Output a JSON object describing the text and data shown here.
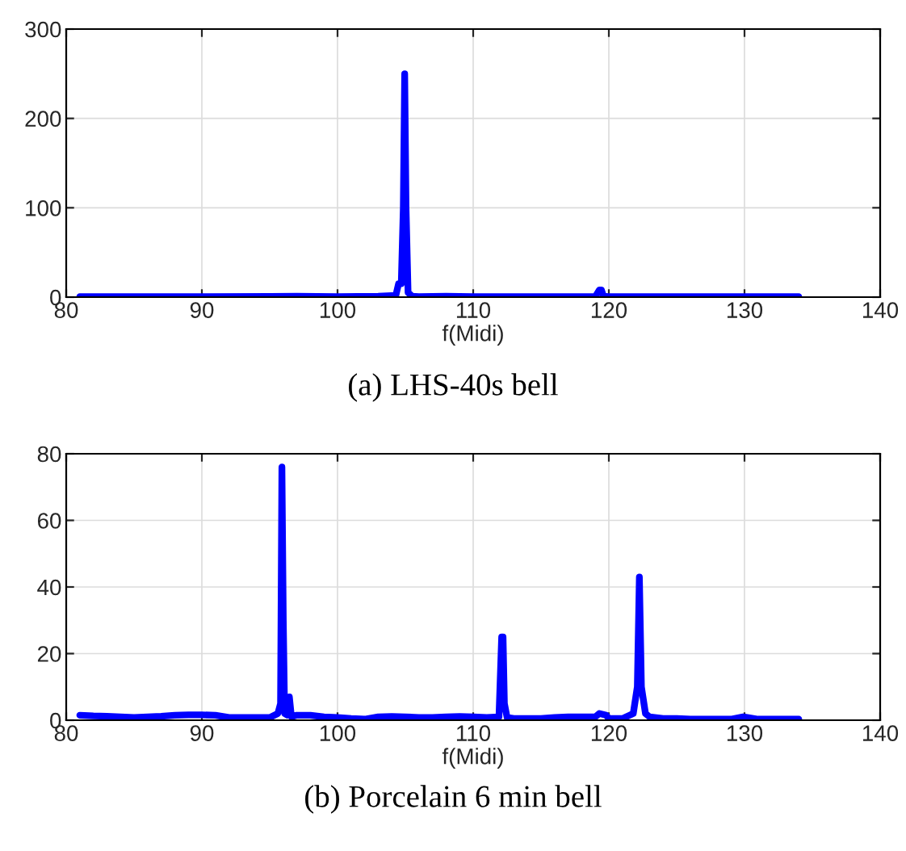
{
  "chart_data": [
    {
      "type": "line",
      "xlabel": "f(Midi)",
      "annotations": [
        "(a) LHS-40s bell"
      ],
      "xlim": [
        80,
        140
      ],
      "ylim": [
        0,
        300
      ],
      "xticks": [
        80,
        90,
        100,
        110,
        120,
        130,
        140
      ],
      "yticks": [
        0,
        100,
        200,
        300
      ],
      "grid": true,
      "marker": "none",
      "line_style": "solid",
      "series": [
        {
          "color": "#0000ff",
          "x": [
            81,
            85,
            90,
            95,
            97,
            100,
            103,
            104.3,
            104.5,
            104.7,
            104.85,
            104.95,
            105.05,
            105.2,
            105.5,
            106,
            108,
            110,
            115,
            119,
            119.3,
            119.45,
            119.6,
            120,
            125,
            130,
            134
          ],
          "values": [
            0.5,
            0.5,
            0.5,
            0.8,
            1,
            0.5,
            1,
            2,
            15,
            15,
            100,
            250,
            100,
            5,
            1,
            0.5,
            1,
            0.5,
            0.5,
            0.5,
            8,
            8,
            1,
            0.5,
            0.5,
            0.5,
            0.5
          ]
        }
      ]
    },
    {
      "type": "line",
      "xlabel": "f(Midi)",
      "annotations": [
        "(b) Porcelain 6 min bell"
      ],
      "xlim": [
        80,
        140
      ],
      "ylim": [
        0,
        80
      ],
      "xticks": [
        80,
        90,
        100,
        110,
        120,
        130,
        140
      ],
      "yticks": [
        0,
        20,
        40,
        60,
        80
      ],
      "grid": true,
      "marker": "none",
      "line_style": "solid",
      "series": [
        {
          "color": "#0000ff",
          "x": [
            81,
            82,
            83,
            84,
            85,
            86,
            87,
            88,
            89,
            90,
            91,
            92,
            93,
            94,
            95,
            95.6,
            95.8,
            95.9,
            96.0,
            96.1,
            96.3,
            96.45,
            96.6,
            97,
            98,
            99,
            100,
            101,
            102,
            103,
            104,
            105,
            106,
            107,
            108,
            109,
            110,
            111,
            111.9,
            112.1,
            112.2,
            112.3,
            112.5,
            113,
            114,
            115,
            116,
            117,
            118,
            119,
            119.3,
            119.8,
            120,
            121,
            121.8,
            122.1,
            122.25,
            122.4,
            122.7,
            123,
            124,
            125,
            126,
            127,
            128,
            129,
            129.9,
            130.2,
            131,
            132,
            133,
            134
          ],
          "values": [
            1.5,
            1.3,
            1.2,
            1,
            0.8,
            1,
            1.2,
            1.5,
            1.6,
            1.6,
            1.5,
            0.8,
            0.8,
            0.8,
            0.8,
            2,
            5,
            76,
            30,
            2,
            1.5,
            7,
            1,
            1.5,
            1.5,
            1,
            0.8,
            0.5,
            0.3,
            1,
            1.1,
            1,
            0.8,
            0.8,
            1,
            1.1,
            1,
            0.8,
            1,
            25,
            25,
            5,
            0.8,
            0.5,
            0.5,
            0.5,
            0.8,
            1,
            1,
            1,
            2,
            1.5,
            0.5,
            0.5,
            2,
            10,
            43,
            10,
            2,
            1,
            0.5,
            0.5,
            0.3,
            0.3,
            0.3,
            0.3,
            1,
            0.8,
            0.3,
            0.3,
            0.3,
            0.3
          ]
        }
      ]
    }
  ]
}
